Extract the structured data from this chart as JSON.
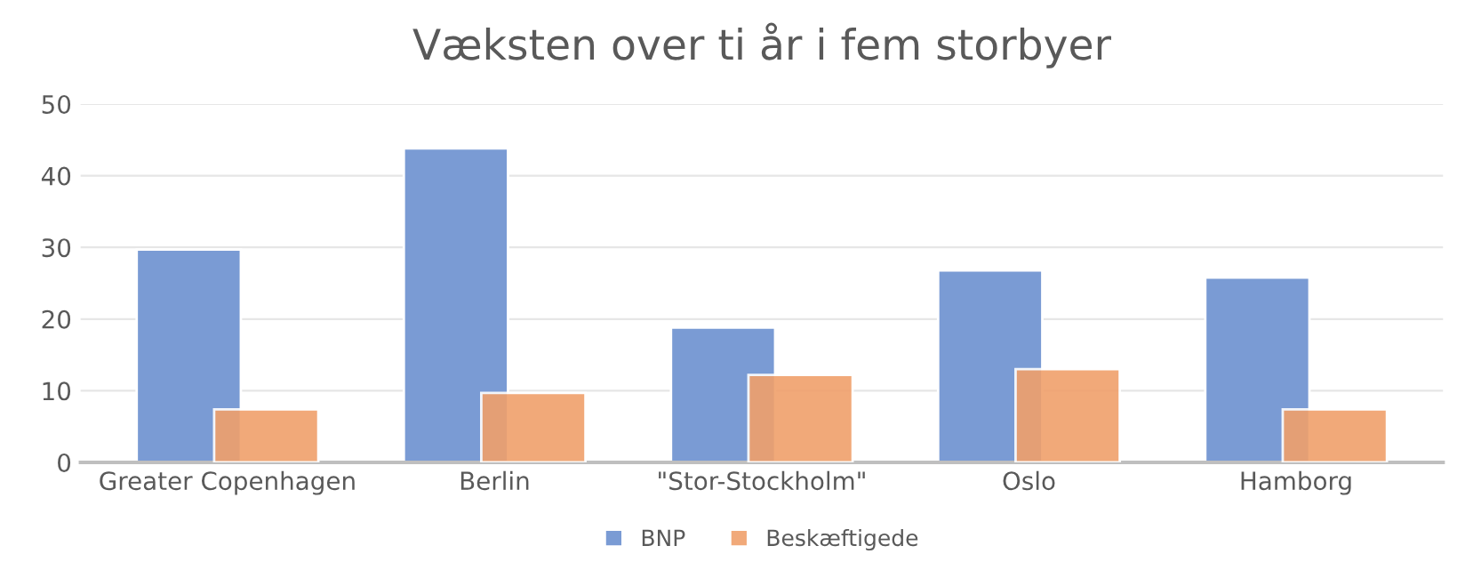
{
  "chart_data": {
    "type": "bar",
    "title": "Væksten over ti år i fem storbyer",
    "categories": [
      "Greater Copenhagen",
      "Berlin",
      "\"Stor-Stockholm\"",
      "Oslo",
      "Hamborg"
    ],
    "series": [
      {
        "name": "BNP",
        "color": "#7a9bd4",
        "values": [
          29.7,
          43.8,
          18.8,
          26.8,
          25.8
        ]
      },
      {
        "name": "Beskæftigede",
        "color": "#f0a06b",
        "values": [
          7.4,
          9.7,
          12.2,
          13.0,
          7.4
        ]
      }
    ],
    "ylim": [
      0,
      50
    ],
    "yticks": [
      0,
      10,
      20,
      30,
      40,
      50
    ],
    "grid": "y",
    "legend": "bottom"
  }
}
